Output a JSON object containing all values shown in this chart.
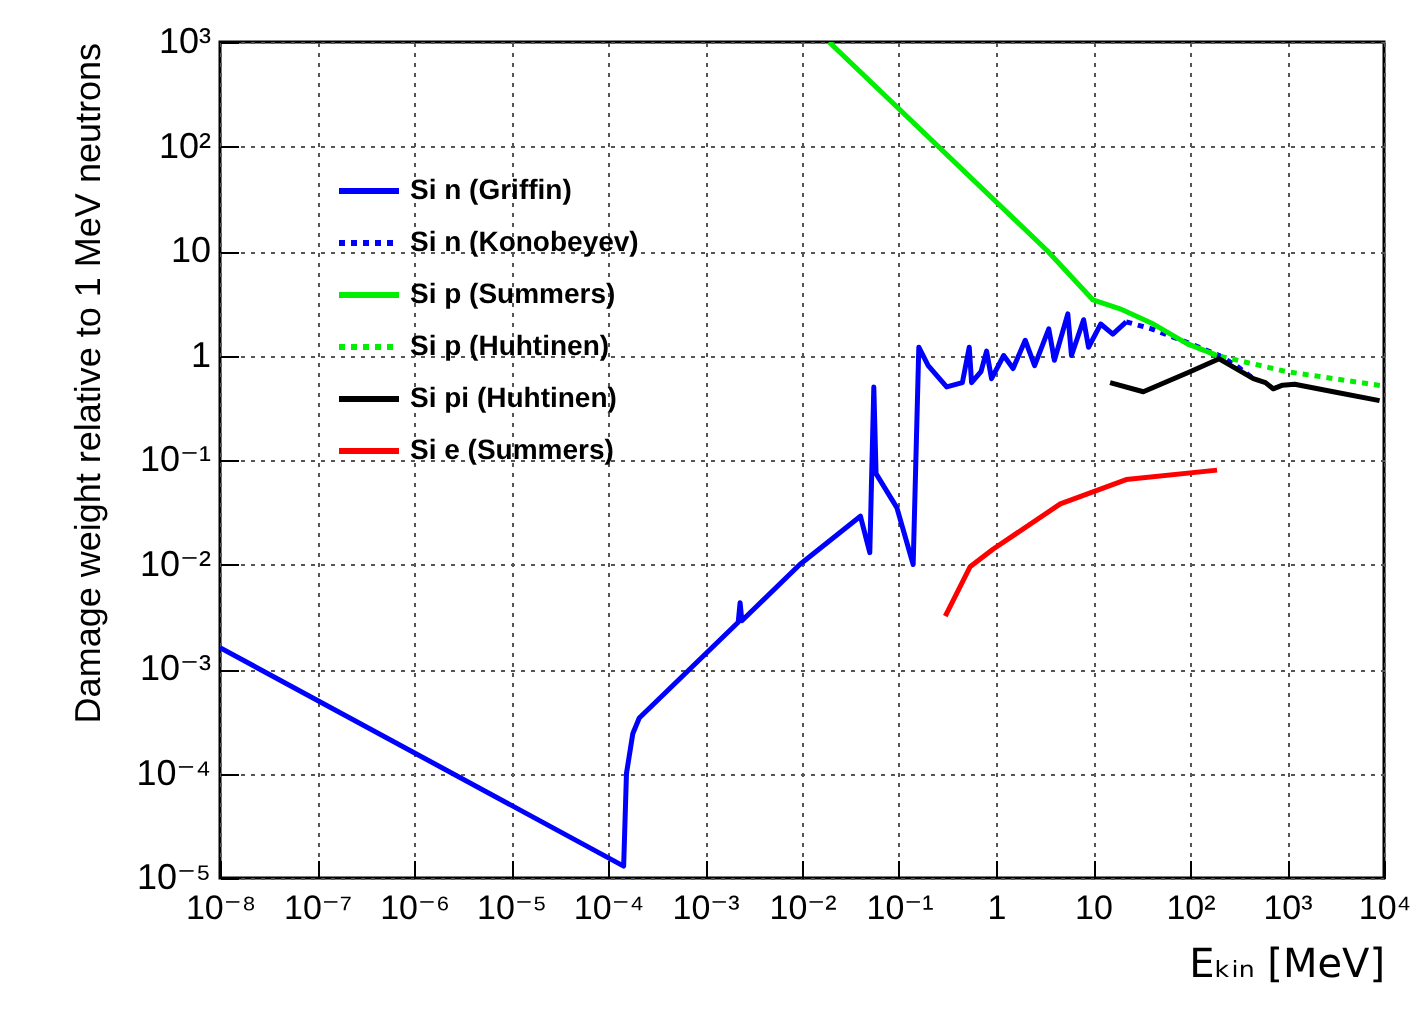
{
  "chart_data": {
    "type": "line",
    "xlabel": "Eₖᵢₙ [MeV]",
    "ylabel": "Damage weight relative to 1 MeV neutrons",
    "log": "xy",
    "grid": true,
    "legend": "top left",
    "xlim": [
      1e-08,
      10000
    ],
    "ylim": [
      1e-05,
      1000
    ],
    "xticks": [
      {
        "value": 1e-08,
        "label": "10⁻⁸"
      },
      {
        "value": 1e-07,
        "label": "10⁻⁷"
      },
      {
        "value": 1e-06,
        "label": "10⁻⁶"
      },
      {
        "value": 1e-05,
        "label": "10⁻⁵"
      },
      {
        "value": 0.0001,
        "label": "10⁻⁴"
      },
      {
        "value": 0.001,
        "label": "10⁻³"
      },
      {
        "value": 0.01,
        "label": "10⁻²"
      },
      {
        "value": 0.1,
        "label": "10⁻¹"
      },
      1,
      10,
      {
        "value": 100,
        "label": "10²"
      },
      {
        "value": 1000,
        "label": "10³"
      },
      {
        "value": 10000,
        "label": "10⁴"
      }
    ],
    "yticks": [
      {
        "value": 1e-05,
        "label": "10⁻⁵"
      },
      {
        "value": 0.0001,
        "label": "10⁻⁴"
      },
      {
        "value": 0.001,
        "label": "10⁻³"
      },
      {
        "value": 0.01,
        "label": "10⁻²"
      },
      {
        "value": 0.1,
        "label": "10⁻¹"
      },
      1,
      10,
      {
        "value": 100,
        "label": "10²"
      },
      {
        "value": 1000,
        "label": "10³"
      }
    ],
    "series": [
      {
        "name": "Si n  (Griffin)",
        "color": "#0000ff",
        "line_style": "solid",
        "x": [
          1e-08,
          0.000145,
          0.000155,
          0.00018,
          0.00021,
          0.0022,
          0.0023,
          0.0024,
          0.0095,
          0.04,
          0.05,
          0.055,
          0.058,
          0.095,
          0.14,
          0.16,
          0.2,
          0.31,
          0.45,
          0.53,
          0.56,
          0.7,
          0.8,
          0.9,
          1.2,
          1.5,
          2.0,
          2.5,
          3.5,
          4.0,
          5.5,
          6.0,
          8.0,
          9.0,
          12,
          16,
          22
        ],
        "values": [
          0.0016,
          1.3e-05,
          0.0001,
          0.00024,
          0.00034,
          0.0028,
          0.0043,
          0.0029,
          0.01,
          0.029,
          0.013,
          0.5,
          0.074,
          0.035,
          0.01,
          1.2,
          0.8,
          0.5,
          0.55,
          1.2,
          0.55,
          0.7,
          1.1,
          0.6,
          1.0,
          0.75,
          1.4,
          0.8,
          1.8,
          0.9,
          2.5,
          1.0,
          2.2,
          1.2,
          2.0,
          1.6,
          2.1
        ]
      },
      {
        "name": "Si n  (Konobeyev)",
        "color": "#0000ff",
        "line_style": "dotted",
        "x": [
          22,
          40,
          100,
          200,
          300,
          450
        ],
        "values": [
          2.1,
          1.8,
          1.3,
          1.0,
          0.8,
          0.6
        ]
      },
      {
        "name": "Si p  (Summers)",
        "color": "#00ee00",
        "line_style": "solid",
        "x": [
          0.019,
          3.4,
          10,
          19,
          42,
          93,
          190
        ],
        "values": [
          1000,
          10,
          3.4,
          2.8,
          2.0,
          1.3,
          1.0
        ]
      },
      {
        "name": "Si p  (Huhtinen)",
        "color": "#00ee00",
        "line_style": "dotted",
        "x": [
          93,
          190,
          1000,
          10000
        ],
        "values": [
          1.3,
          1.0,
          0.7,
          0.51
        ]
      },
      {
        "name": "Si pi (Huhtinen)",
        "color": "#000000",
        "line_style": "solid",
        "x": [
          15,
          33,
          100,
          200,
          450,
          600,
          720,
          900,
          1200,
          3000,
          9000
        ],
        "values": [
          0.55,
          0.45,
          0.7,
          0.93,
          0.6,
          0.55,
          0.48,
          0.52,
          0.53,
          0.45,
          0.37
        ]
      },
      {
        "name": "Si e  (Summers)",
        "color": "#ff0000",
        "line_style": "solid",
        "x": [
          0.3,
          0.54,
          0.93,
          4.6,
          22,
          190
        ],
        "values": [
          0.0032,
          0.0095,
          0.014,
          0.038,
          0.065,
          0.08
        ]
      }
    ]
  }
}
